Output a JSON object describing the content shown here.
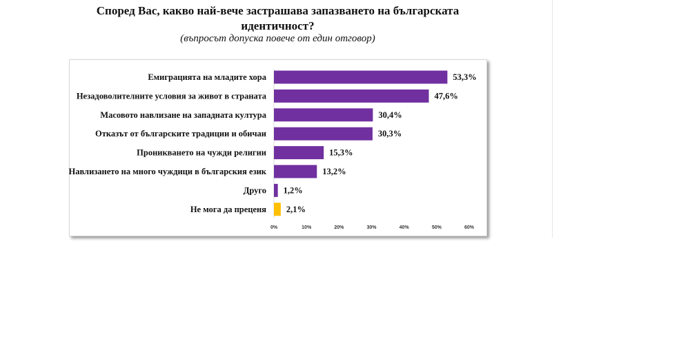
{
  "chart_data": {
    "type": "bar",
    "orientation": "horizontal",
    "title": "Според Вас, какво най-вече застрашава запазването на българската идентичност?",
    "subtitle": "(въпросът допуска повече от един отговор)",
    "categories": [
      "Емиграцията на младите хора",
      "Незадоволителните условия за живот в страната",
      "Масовото навлизане на западната култура",
      "Отказът от българските традиции и обичаи",
      "Проникването на чужди религии",
      "Навлизането на много чуждици в българския език",
      "Друго",
      "Не мога да преценя"
    ],
    "values": [
      53.3,
      47.6,
      30.4,
      30.3,
      15.3,
      13.2,
      1.2,
      2.1
    ],
    "data_labels": [
      "53,3%",
      "47,6%",
      "30,4%",
      "30,3%",
      "15,3%",
      "13,2%",
      "1,2%",
      "2,1%"
    ],
    "colors": [
      "#7030a0",
      "#7030a0",
      "#7030a0",
      "#7030a0",
      "#7030a0",
      "#7030a0",
      "#7030a0",
      "#ffc000"
    ],
    "xlim": [
      0,
      60
    ],
    "xticks": [
      "0%",
      "10%",
      "20%",
      "30%",
      "40%",
      "50%",
      "60%"
    ],
    "xlabel": "",
    "ylabel": "",
    "grid": false,
    "legend": "none"
  }
}
